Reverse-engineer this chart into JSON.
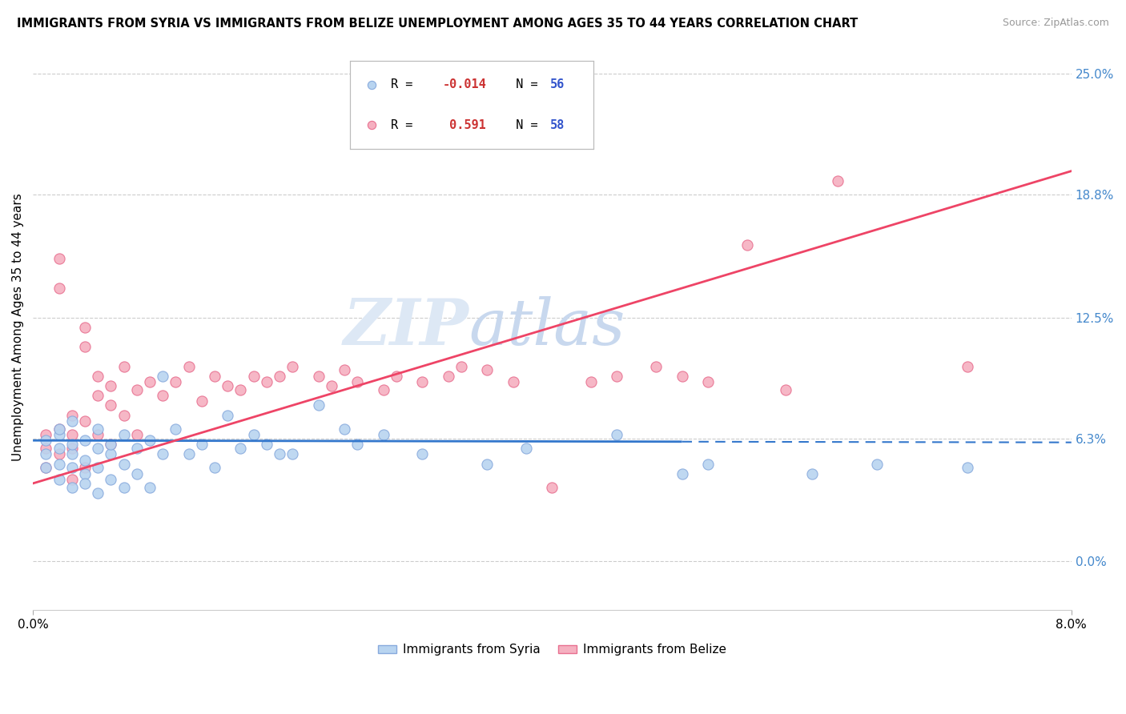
{
  "title": "IMMIGRANTS FROM SYRIA VS IMMIGRANTS FROM BELIZE UNEMPLOYMENT AMONG AGES 35 TO 44 YEARS CORRELATION CHART",
  "source": "Source: ZipAtlas.com",
  "ylabel_label": "Unemployment Among Ages 35 to 44 years",
  "xmin": 0.0,
  "xmax": 0.08,
  "ymin": -0.025,
  "ymax": 0.265,
  "ylabel_right_ticks": [
    0.0,
    0.063,
    0.125,
    0.188,
    0.25
  ],
  "ylabel_right_labels": [
    "0.0%",
    "6.3%",
    "12.5%",
    "18.8%",
    "25.0%"
  ],
  "legend_syria_label": "Immigrants from Syria",
  "legend_belize_label": "Immigrants from Belize",
  "syria_color": "#b8d4f0",
  "belize_color": "#f5b0c0",
  "syria_edge": "#88aadd",
  "belize_edge": "#e87090",
  "trend_syria_color": "#3377cc",
  "trend_belize_color": "#ee4466",
  "watermark_zip": "ZIP",
  "watermark_atlas": "atlas",
  "watermark_color": "#dde8f5",
  "background_color": "#ffffff",
  "grid_color": "#cccccc",
  "syria_scatter_x": [
    0.001,
    0.001,
    0.001,
    0.002,
    0.002,
    0.002,
    0.002,
    0.002,
    0.003,
    0.003,
    0.003,
    0.003,
    0.003,
    0.004,
    0.004,
    0.004,
    0.004,
    0.005,
    0.005,
    0.005,
    0.005,
    0.006,
    0.006,
    0.006,
    0.007,
    0.007,
    0.007,
    0.008,
    0.008,
    0.009,
    0.009,
    0.01,
    0.01,
    0.011,
    0.012,
    0.013,
    0.014,
    0.015,
    0.016,
    0.017,
    0.018,
    0.019,
    0.02,
    0.022,
    0.024,
    0.025,
    0.027,
    0.03,
    0.035,
    0.038,
    0.045,
    0.05,
    0.052,
    0.06,
    0.065,
    0.072
  ],
  "syria_scatter_y": [
    0.055,
    0.062,
    0.048,
    0.05,
    0.058,
    0.065,
    0.042,
    0.068,
    0.055,
    0.048,
    0.06,
    0.038,
    0.072,
    0.045,
    0.052,
    0.062,
    0.04,
    0.058,
    0.048,
    0.068,
    0.035,
    0.055,
    0.06,
    0.042,
    0.05,
    0.065,
    0.038,
    0.058,
    0.045,
    0.062,
    0.038,
    0.095,
    0.055,
    0.068,
    0.055,
    0.06,
    0.048,
    0.075,
    0.058,
    0.065,
    0.06,
    0.055,
    0.055,
    0.08,
    0.068,
    0.06,
    0.065,
    0.055,
    0.05,
    0.058,
    0.065,
    0.045,
    0.05,
    0.045,
    0.05,
    0.048
  ],
  "belize_scatter_x": [
    0.001,
    0.001,
    0.001,
    0.002,
    0.002,
    0.002,
    0.002,
    0.003,
    0.003,
    0.003,
    0.003,
    0.004,
    0.004,
    0.004,
    0.004,
    0.005,
    0.005,
    0.005,
    0.006,
    0.006,
    0.006,
    0.007,
    0.007,
    0.008,
    0.008,
    0.009,
    0.01,
    0.011,
    0.012,
    0.013,
    0.014,
    0.015,
    0.016,
    0.017,
    0.018,
    0.019,
    0.02,
    0.022,
    0.023,
    0.024,
    0.025,
    0.027,
    0.028,
    0.03,
    0.032,
    0.033,
    0.035,
    0.037,
    0.04,
    0.043,
    0.045,
    0.048,
    0.05,
    0.052,
    0.055,
    0.058,
    0.062,
    0.072
  ],
  "belize_scatter_y": [
    0.065,
    0.058,
    0.048,
    0.155,
    0.14,
    0.068,
    0.055,
    0.075,
    0.065,
    0.042,
    0.058,
    0.12,
    0.11,
    0.072,
    0.048,
    0.085,
    0.095,
    0.065,
    0.09,
    0.08,
    0.06,
    0.1,
    0.075,
    0.088,
    0.065,
    0.092,
    0.085,
    0.092,
    0.1,
    0.082,
    0.095,
    0.09,
    0.088,
    0.095,
    0.092,
    0.095,
    0.1,
    0.095,
    0.09,
    0.098,
    0.092,
    0.088,
    0.095,
    0.092,
    0.095,
    0.1,
    0.098,
    0.092,
    0.038,
    0.092,
    0.095,
    0.1,
    0.095,
    0.092,
    0.162,
    0.088,
    0.195,
    0.1
  ],
  "trend_syria_x0": 0.0,
  "trend_syria_x1": 0.08,
  "trend_syria_y0": 0.062,
  "trend_syria_y1": 0.061,
  "trend_syria_solid_end": 0.05,
  "trend_belize_x0": 0.0,
  "trend_belize_x1": 0.08,
  "trend_belize_y0": 0.04,
  "trend_belize_y1": 0.2
}
